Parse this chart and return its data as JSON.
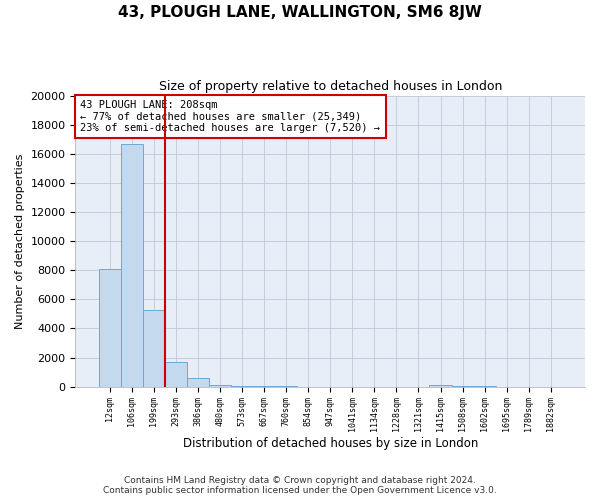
{
  "title": "43, PLOUGH LANE, WALLINGTON, SM6 8JW",
  "subtitle": "Size of property relative to detached houses in London",
  "xlabel": "Distribution of detached houses by size in London",
  "ylabel": "Number of detached properties",
  "bar_color": "#c5d9ee",
  "bar_edge_color": "#6aaad4",
  "background_color": "#e8eef8",
  "annotation_box_color": "#cc0000",
  "property_label": "43 PLOUGH LANE: 208sqm",
  "arrow_left_text": "← 77% of detached houses are smaller (25,349)",
  "arrow_right_text": "23% of semi-detached houses are larger (7,520) →",
  "vline_color": "#cc0000",
  "categories": [
    "12sqm",
    "106sqm",
    "199sqm",
    "293sqm",
    "386sqm",
    "480sqm",
    "573sqm",
    "667sqm",
    "760sqm",
    "854sqm",
    "947sqm",
    "1041sqm",
    "1134sqm",
    "1228sqm",
    "1321sqm",
    "1415sqm",
    "1508sqm",
    "1602sqm",
    "1695sqm",
    "1789sqm",
    "1882sqm"
  ],
  "values": [
    8100,
    16700,
    5300,
    1700,
    600,
    150,
    80,
    40,
    20,
    12,
    8,
    5,
    3,
    3,
    2,
    150,
    50,
    20,
    8,
    3,
    2
  ],
  "ylim": [
    0,
    20000
  ],
  "yticks": [
    0,
    2000,
    4000,
    6000,
    8000,
    10000,
    12000,
    14000,
    16000,
    18000,
    20000
  ],
  "footer_line1": "Contains HM Land Registry data © Crown copyright and database right 2024.",
  "footer_line2": "Contains public sector information licensed under the Open Government Licence v3.0.",
  "vline_x_index": 2.5
}
